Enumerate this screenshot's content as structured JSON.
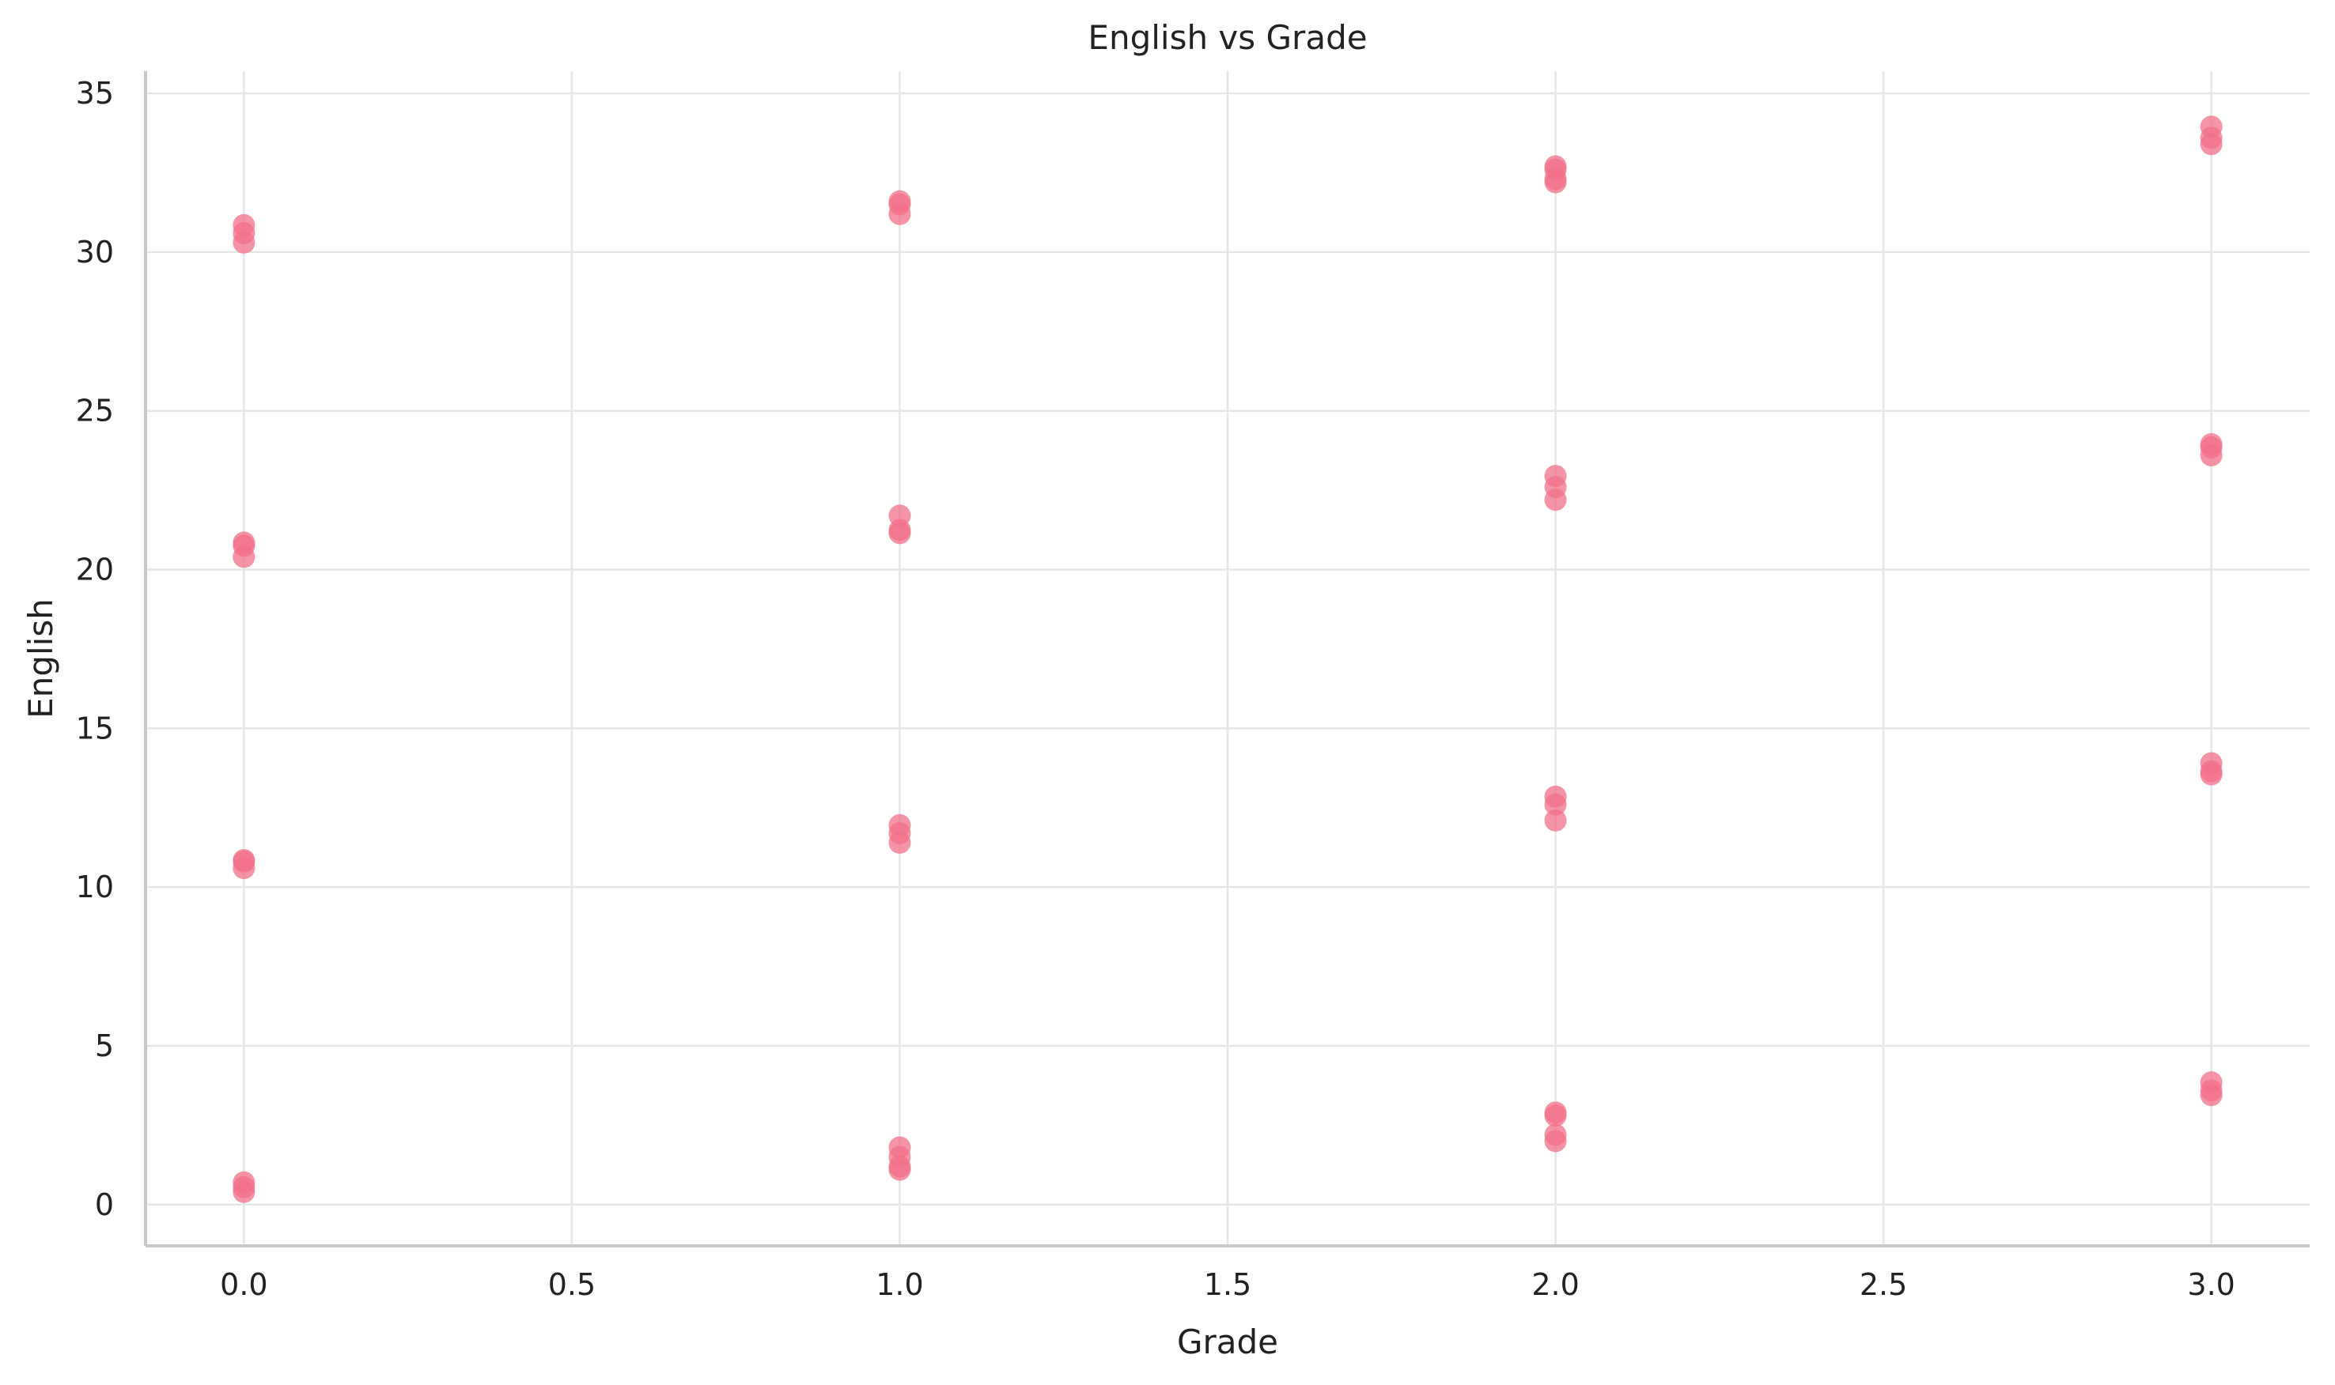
{
  "chart_data": {
    "type": "scatter",
    "title": "English vs Grade",
    "xlabel": "Grade",
    "ylabel": "English",
    "xlim": [
      -0.15,
      3.15
    ],
    "ylim": [
      -1.3,
      35.7
    ],
    "xticks": [
      0.0,
      0.5,
      1.0,
      1.5,
      2.0,
      2.5,
      3.0
    ],
    "xtick_labels": [
      "0.0",
      "0.5",
      "1.0",
      "1.5",
      "2.0",
      "2.5",
      "3.0"
    ],
    "yticks": [
      0,
      5,
      10,
      15,
      20,
      25,
      30,
      35
    ],
    "ytick_labels": [
      "0",
      "5",
      "10",
      "15",
      "20",
      "25",
      "30",
      "35"
    ],
    "grid": true,
    "marker_color": "#f27089",
    "series": [
      {
        "points": [
          [
            0,
            0.4
          ],
          [
            0,
            0.55
          ],
          [
            0,
            0.7
          ],
          [
            0,
            10.6
          ],
          [
            0,
            10.8
          ],
          [
            0,
            10.85
          ],
          [
            0,
            20.4
          ],
          [
            0,
            20.75
          ],
          [
            0,
            20.85
          ],
          [
            0,
            30.3
          ],
          [
            0,
            30.6
          ],
          [
            0,
            30.85
          ],
          [
            1,
            1.1
          ],
          [
            1,
            1.2
          ],
          [
            1,
            1.5
          ],
          [
            1,
            1.8
          ],
          [
            1,
            11.4
          ],
          [
            1,
            11.7
          ],
          [
            1,
            11.95
          ],
          [
            1,
            21.15
          ],
          [
            1,
            21.25
          ],
          [
            1,
            21.7
          ],
          [
            1,
            31.2
          ],
          [
            1,
            31.5
          ],
          [
            1,
            31.6
          ],
          [
            2,
            2.0
          ],
          [
            2,
            2.2
          ],
          [
            2,
            2.8
          ],
          [
            2,
            2.9
          ],
          [
            2,
            12.1
          ],
          [
            2,
            12.6
          ],
          [
            2,
            12.85
          ],
          [
            2,
            22.2
          ],
          [
            2,
            22.6
          ],
          [
            2,
            22.95
          ],
          [
            2,
            32.2
          ],
          [
            2,
            32.3
          ],
          [
            2,
            32.6
          ],
          [
            2,
            32.7
          ],
          [
            3,
            3.45
          ],
          [
            3,
            3.6
          ],
          [
            3,
            3.85
          ],
          [
            3,
            13.55
          ],
          [
            3,
            13.65
          ],
          [
            3,
            13.9
          ],
          [
            3,
            23.6
          ],
          [
            3,
            23.85
          ],
          [
            3,
            23.95
          ],
          [
            3,
            33.4
          ],
          [
            3,
            33.6
          ],
          [
            3,
            33.95
          ]
        ]
      }
    ]
  }
}
